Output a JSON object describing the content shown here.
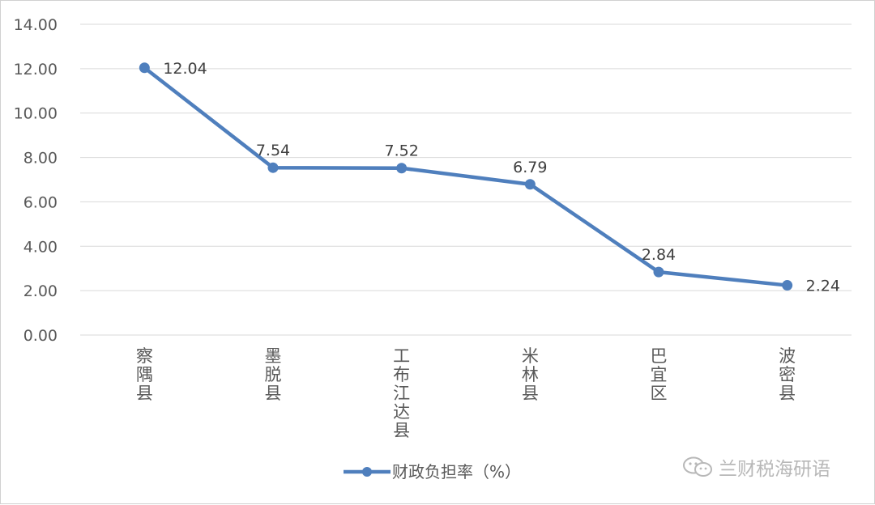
{
  "chart_data": {
    "type": "line",
    "categories": [
      "察隅县",
      "墨脱县",
      "工布江达县",
      "米林县",
      "巴宜区",
      "波密县"
    ],
    "series": [
      {
        "name": "财政负担率（%）",
        "values": [
          12.04,
          7.54,
          7.52,
          6.79,
          2.84,
          2.24
        ]
      }
    ],
    "data_labels": [
      "12.04",
      "7.54",
      "7.52",
      "6.79",
      "2.84",
      "2.24"
    ],
    "ylim": [
      0,
      14
    ],
    "y_ticks": [
      "0.00",
      "2.00",
      "4.00",
      "6.00",
      "8.00",
      "10.00",
      "12.00",
      "14.00"
    ],
    "grid": true,
    "legend_position": "bottom",
    "colors": {
      "line": "#4f7fbd",
      "grid": "#d9d9d9",
      "text": "#595959"
    }
  },
  "watermark": {
    "text": "兰财税海研语",
    "icon": "wechat-icon"
  }
}
